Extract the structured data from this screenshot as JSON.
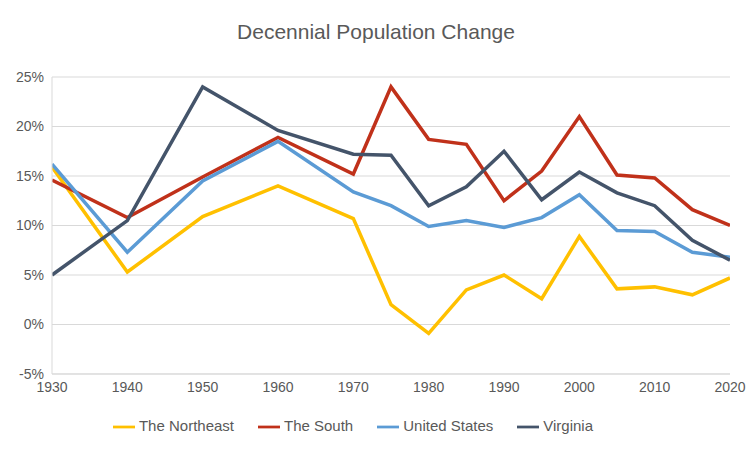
{
  "chart_data": {
    "type": "line",
    "title": "Decennial Population Change",
    "x": [
      1930,
      1940,
      1950,
      1960,
      1970,
      1975,
      1980,
      1985,
      1990,
      1995,
      2000,
      2005,
      2010,
      2015,
      2020
    ],
    "series": [
      {
        "name": "The Northeast",
        "color": "#FFC000",
        "values": [
          15.9,
          5.3,
          10.9,
          14.0,
          10.7,
          2.0,
          -0.9,
          3.5,
          5.0,
          2.6,
          8.9,
          3.6,
          3.8,
          3.0,
          4.7
        ]
      },
      {
        "name": "The South",
        "color": "#C0311A",
        "values": [
          14.6,
          10.8,
          14.9,
          18.9,
          15.2,
          24.0,
          18.7,
          18.2,
          12.5,
          15.5,
          21.0,
          15.1,
          14.8,
          11.6,
          10.0
        ]
      },
      {
        "name": "United States",
        "color": "#5B9BD5",
        "values": [
          16.2,
          7.3,
          14.5,
          18.5,
          13.4,
          12.0,
          9.9,
          10.5,
          9.8,
          10.8,
          13.1,
          9.5,
          9.4,
          7.3,
          6.8
        ]
      },
      {
        "name": "Virginia",
        "color": "#44546A",
        "values": [
          5.0,
          10.5,
          24.0,
          19.6,
          17.2,
          17.1,
          12.0,
          13.9,
          17.5,
          12.6,
          15.4,
          13.3,
          12.0,
          8.5,
          6.5
        ]
      }
    ],
    "xlim": [
      1930,
      2020
    ],
    "xticks": [
      1930,
      1940,
      1950,
      1960,
      1970,
      1980,
      1990,
      2000,
      2010,
      2020
    ],
    "ylim": [
      -5,
      25
    ],
    "yticks": [
      {
        "value": -5,
        "label": "-5%"
      },
      {
        "value": 0,
        "label": "0%"
      },
      {
        "value": 5,
        "label": "5%"
      },
      {
        "value": 10,
        "label": "10%"
      },
      {
        "value": 15,
        "label": "15%"
      },
      {
        "value": 20,
        "label": "20%"
      },
      {
        "value": 25,
        "label": "25%"
      }
    ],
    "grid": true,
    "legend": "bottom"
  }
}
